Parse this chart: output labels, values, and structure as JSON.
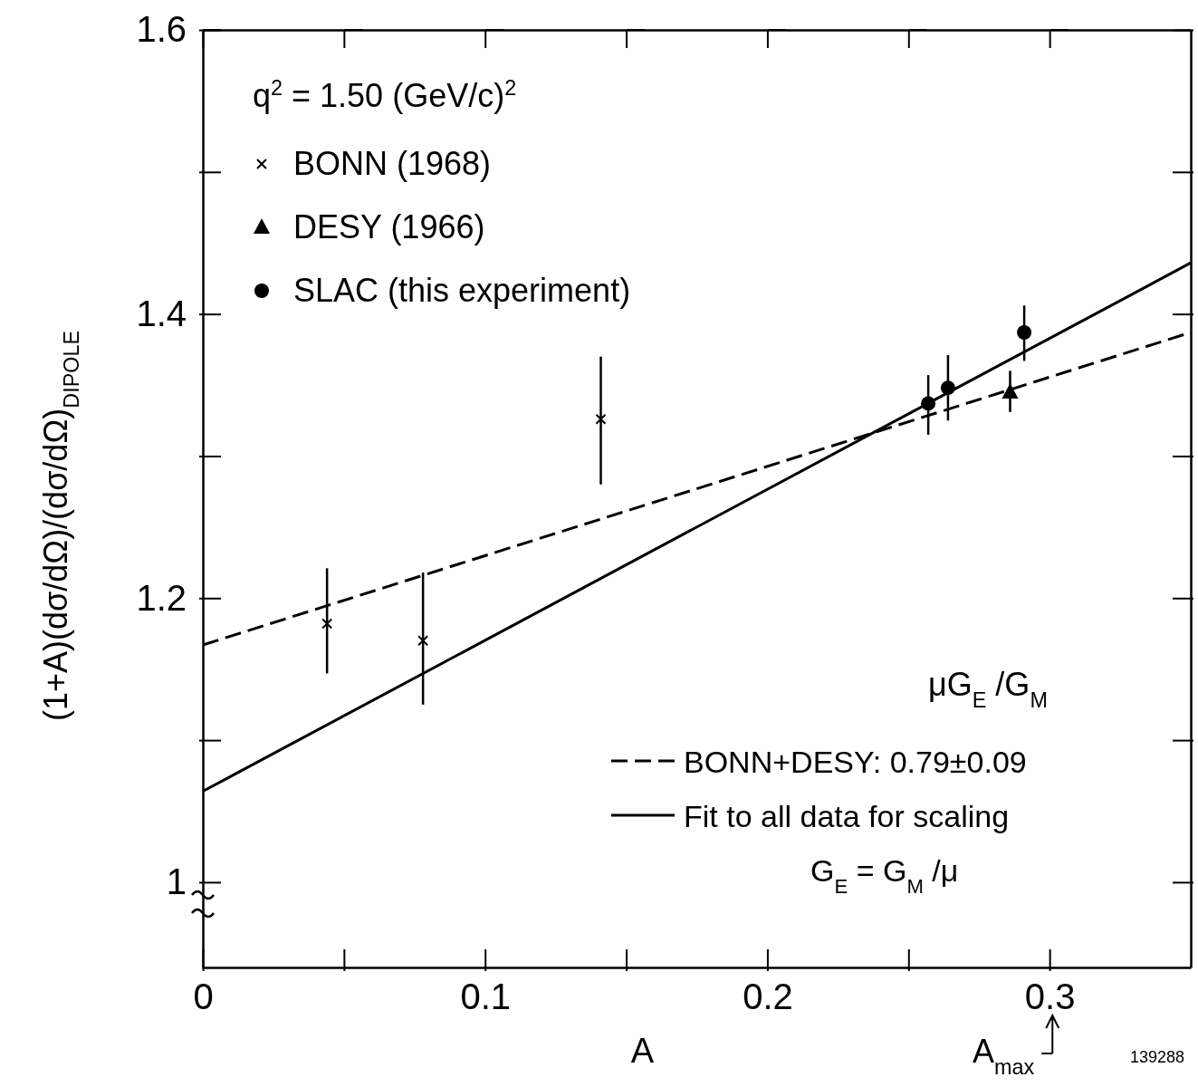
{
  "chart_data": {
    "type": "scatter",
    "xlabel": "A",
    "ylabel": "(1+A)(dσ/dΩ)/(dσ/dΩ)$_{DIPOLE}$",
    "xlim": [
      0,
      0.35
    ],
    "ylim": [
      0.94,
      1.6
    ],
    "xticks": [
      0,
      {
        "value": 0.05,
        "label": null
      },
      0.1,
      {
        "value": 0.15,
        "label": null
      },
      0.2,
      {
        "value": 0.25,
        "label": null
      },
      0.3
    ],
    "yticks": [
      1.0,
      {
        "value": 1.1,
        "label": null
      },
      1.2,
      {
        "value": 1.3,
        "label": null
      },
      1.4,
      {
        "value": 1.5,
        "label": null
      },
      1.6
    ],
    "grid": false,
    "legend": "left",
    "legend_title": "μG$_{E}$ /G$_{M}$",
    "series": [
      {
        "name": "BONN (1968)",
        "color": "#000000",
        "marker": "cross",
        "x": [
          0.044,
          0.078,
          0.141
        ],
        "values": [
          1.182,
          1.17,
          1.326
        ],
        "errors": [
          [
            1.147,
            1.221
          ],
          [
            1.125,
            1.218
          ],
          [
            1.28,
            1.37
          ]
        ]
      },
      {
        "name": "DESY (1966)",
        "color": "#000000",
        "marker": "triangle",
        "x": [
          0.286
        ],
        "values": [
          1.345
        ],
        "errors": [
          [
            1.331,
            1.36
          ]
        ]
      },
      {
        "name": "SLAC (this experiment)",
        "color": "#000000",
        "marker": "circle",
        "x": [
          0.257,
          0.264,
          0.291
        ],
        "values": [
          1.337,
          1.348,
          1.387
        ],
        "errors": [
          [
            1.315,
            1.357
          ],
          [
            1.325,
            1.371
          ],
          [
            1.367,
            1.406
          ]
        ]
      },
      {
        "name": "BONN+DESY: 0.79±0.09",
        "type": "line",
        "line_style": "dashed",
        "color": "#000000",
        "x": [
          0,
          0.35
        ],
        "values": [
          1.167,
          1.387
        ]
      },
      {
        "name": "Fit to all data for scaling G$_{E}$ = G$_{M}$ /μ",
        "type": "line",
        "line_style": "solid",
        "color": "#000000",
        "x": [
          0,
          0.35
        ],
        "values": [
          1.064,
          1.436
        ]
      }
    ],
    "annotations": [
      "q$^{2}$ = 1.50 (GeV/c)$^{2}$",
      "A$_{max}$",
      "139288"
    ]
  }
}
